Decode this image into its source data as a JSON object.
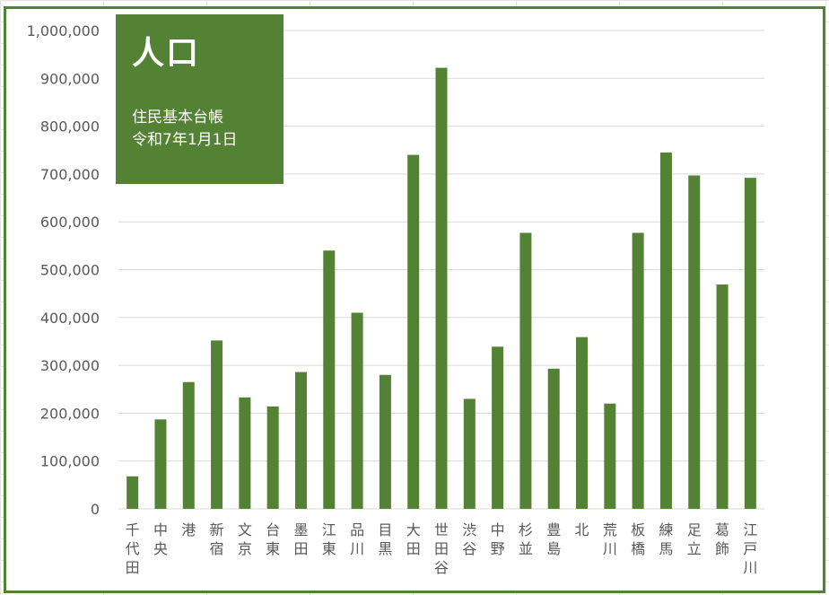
{
  "colors": {
    "bar": "#548235",
    "frame": "#548235",
    "grid": "#d9d9d9",
    "tick_text": "#595959"
  },
  "title_box": {
    "title": "人口",
    "line1": "住民基本台帳",
    "line2": "令和7年1月1日"
  },
  "chart_data": {
    "type": "bar",
    "title": "人口",
    "subtitle": "住民基本台帳 令和7年1月1日",
    "xlabel": "",
    "ylabel": "",
    "ylim": [
      0,
      1000000
    ],
    "yticks": [
      0,
      100000,
      200000,
      300000,
      400000,
      500000,
      600000,
      700000,
      800000,
      900000,
      1000000
    ],
    "ytick_labels": [
      "0",
      "100,000",
      "200,000",
      "300,000",
      "400,000",
      "500,000",
      "600,000",
      "700,000",
      "800,000",
      "900,000",
      "1,000,000"
    ],
    "grid": true,
    "legend": "none",
    "categories": [
      "千代田",
      "中央",
      "港",
      "新宿",
      "文京",
      "台東",
      "墨田",
      "江東",
      "品川",
      "目黒",
      "大田",
      "世田谷",
      "渋谷",
      "中野",
      "杉並",
      "豊島",
      "北",
      "荒川",
      "板橋",
      "練馬",
      "足立",
      "葛飾",
      "江戸川"
    ],
    "values": [
      68000,
      187000,
      265000,
      352000,
      233000,
      214000,
      286000,
      540000,
      410000,
      280000,
      740000,
      922000,
      230000,
      339000,
      577000,
      293000,
      359000,
      220000,
      577000,
      745000,
      697000,
      469000,
      692000
    ]
  }
}
